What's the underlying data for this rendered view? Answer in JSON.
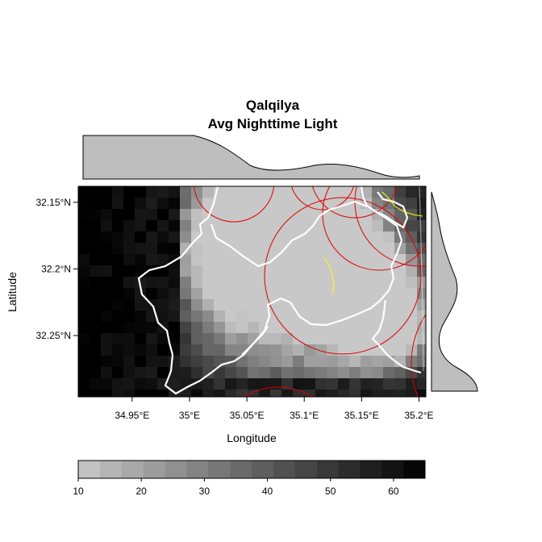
{
  "title_line1": "Qalqilya",
  "title_line2": "Avg Nighttime Light",
  "x_axis_label": "Longitude",
  "y_axis_label": "Latitude",
  "x_ticks": [
    "34.95°E",
    "35°E",
    "35.05°E",
    "35.1°E",
    "35.15°E",
    "35.2°E"
  ],
  "y_ticks": [
    "32.25°N",
    "32.2°N",
    "32.15°N"
  ],
  "legend_ticks": [
    "10",
    "20",
    "30",
    "40",
    "50",
    "60"
  ],
  "chart_data": {
    "type": "heatmap",
    "title": "Qalqilya\nAvg Nighttime Light",
    "xlabel": "Longitude",
    "ylabel": "Latitude",
    "xlim": [
      34.903,
      35.206
    ],
    "ylim": [
      32.104,
      32.262
    ],
    "x_ticks": [
      34.95,
      35.0,
      35.05,
      35.1,
      35.15,
      35.2
    ],
    "y_ticks": [
      32.15,
      32.2,
      32.25
    ],
    "value_range": [
      10,
      65
    ],
    "legend_ticks": [
      10,
      20,
      30,
      40,
      50,
      60
    ],
    "colormap": "grey, light to dark (low values light, high values dark)",
    "legend_placement": "bottom",
    "marginal_density_top": true,
    "marginal_density_right": true,
    "overlays": [
      "white boundary lines",
      "red circles",
      "yellow lines"
    ]
  }
}
